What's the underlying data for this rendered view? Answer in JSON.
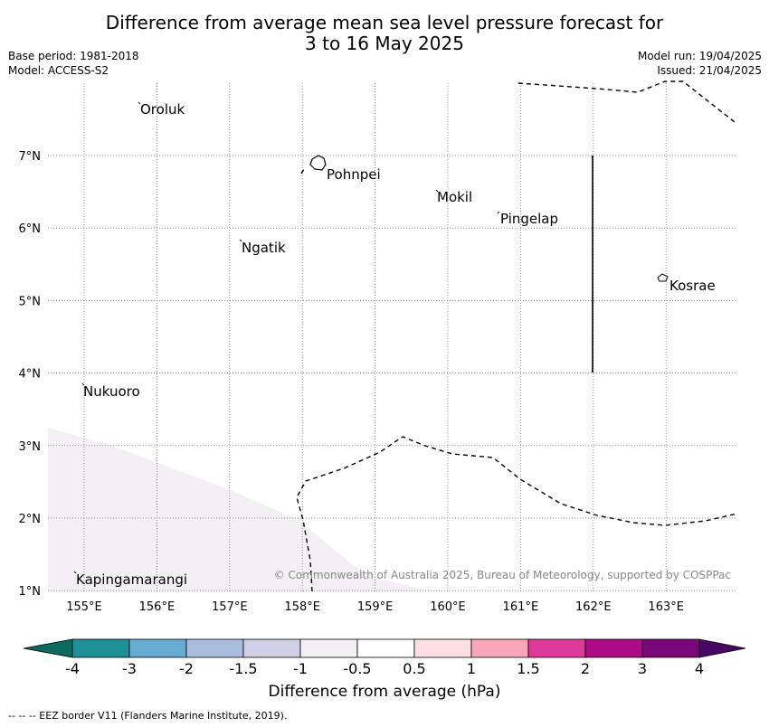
{
  "title_line1": "Difference from average mean sea level pressure forecast for",
  "title_line2": "3 to 16 May 2025",
  "base_period": "Base period: 1981-2018",
  "model": "Model: ACCESS-S2",
  "model_run": "Model run: 19/04/2025",
  "issued": "Issued: 21/04/2025",
  "copyright": "© Commonwealth of Australia 2025, Bureau of Meteorology, supported by COSPPac",
  "footnote": "--  --  -- EEZ border V11 (Flanders Marine Institute, 2019).",
  "map": {
    "lon_ticks": [
      "155°E",
      "156°E",
      "157°E",
      "158°E",
      "159°E",
      "160°E",
      "161°E",
      "162°E",
      "163°E"
    ],
    "lat_ticks": [
      "7°N",
      "6°N",
      "5°N",
      "4°N",
      "3°N",
      "2°N",
      "1°N"
    ],
    "places": [
      {
        "name": "Oroluk"
      },
      {
        "name": "Pohnpei"
      },
      {
        "name": "Mokil"
      },
      {
        "name": "Pingelap"
      },
      {
        "name": "Ngatik"
      },
      {
        "name": "Kosrae"
      },
      {
        "name": "Nukuoro"
      },
      {
        "name": "Kapingamarangi"
      }
    ]
  },
  "colorbar": {
    "title": "Difference from average (hPa)",
    "tick_labels": [
      "-4",
      "-3",
      "-2",
      "-1.5",
      "-1",
      "-0.5",
      "0.5",
      "1",
      "1.5",
      "2",
      "3",
      "4"
    ],
    "colors": [
      "#1e9098",
      "#66acd0",
      "#a8bcdc",
      "#cfd0e6",
      "#f4eef5",
      "#ffffff",
      "#ffdfe2",
      "#f8a6b8",
      "#de3899",
      "#ac0a86",
      "#7a0678"
    ],
    "under_color": "#0d6a5e",
    "over_color": "#490665"
  }
}
